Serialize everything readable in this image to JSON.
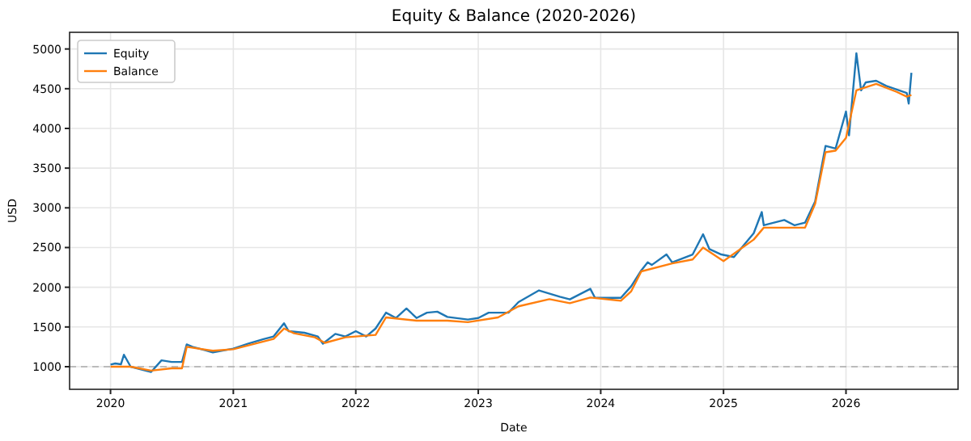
{
  "chart_data": {
    "type": "line",
    "title": "Equity & Balance (2020-2026)",
    "xlabel": "Date",
    "ylabel": "USD",
    "xlim": [
      "2019-09",
      "2026-12"
    ],
    "xticks": [
      "2020",
      "2021",
      "2022",
      "2023",
      "2024",
      "2025",
      "2026"
    ],
    "ylim": [
      715,
      5210
    ],
    "yticks": [
      1000,
      1500,
      2000,
      2500,
      3000,
      3500,
      4000,
      4500,
      5000
    ],
    "grid": true,
    "legend": "top left",
    "marker": "none",
    "line_style": "solid",
    "ref_lines": [
      {
        "axis": "y",
        "value": 1000,
        "color": "#aaaaaa",
        "line_style": "dashed"
      }
    ],
    "series": [
      {
        "name": "Equity",
        "color": "#1f77b4",
        "x": [
          "2020-01",
          "2020-01-15",
          "2020-02",
          "2020-02-10",
          "2020-03",
          "2020-05",
          "2020-06",
          "2020-07",
          "2020-08",
          "2020-08-15",
          "2020-09",
          "2020-11",
          "2021-01",
          "2021-02-15",
          "2021-04",
          "2021-05",
          "2021-06",
          "2021-06-15",
          "2021-08",
          "2021-09-10",
          "2021-09-25",
          "2021-11",
          "2021-12",
          "2022-01",
          "2022-02",
          "2022-03",
          "2022-04",
          "2022-05",
          "2022-06",
          "2022-07",
          "2022-08",
          "2022-09",
          "2022-10",
          "2022-12",
          "2023-01",
          "2023-02",
          "2023-04",
          "2023-05",
          "2023-07",
          "2023-09",
          "2023-10",
          "2023-12",
          "2023-12-15",
          "2024-03",
          "2024-04",
          "2024-05",
          "2024-05-20",
          "2024-06",
          "2024-07-15",
          "2024-08",
          "2024-10",
          "2024-11",
          "2024-11-20",
          "2024-12-25",
          "2025-02",
          "2025-04",
          "2025-04-25",
          "2025-05",
          "2025-07",
          "2025-08",
          "2025-09",
          "2025-10",
          "2025-11",
          "2025-12",
          "2026-01",
          "2026-01-10",
          "2026-02",
          "2026-02-15",
          "2026-03",
          "2026-04",
          "2026-05",
          "2026-07",
          "2026-07-07",
          "2026-07-15"
        ],
        "values": [
          1027,
          1040,
          1030,
          1150,
          1000,
          933,
          1080,
          1060,
          1060,
          1280,
          1250,
          1180,
          1227,
          1290,
          1347,
          1380,
          1547,
          1447,
          1427,
          1380,
          1290,
          1413,
          1380,
          1447,
          1380,
          1480,
          1680,
          1613,
          1733,
          1613,
          1680,
          1693,
          1627,
          1593,
          1613,
          1680,
          1680,
          1813,
          1960,
          1880,
          1847,
          1980,
          1867,
          1867,
          2013,
          2213,
          2313,
          2280,
          2413,
          2313,
          2413,
          2667,
          2480,
          2413,
          2380,
          2680,
          2947,
          2780,
          2847,
          2780,
          2813,
          3080,
          3780,
          3747,
          4213,
          3913,
          4947,
          4480,
          4580,
          4600,
          4535,
          4447,
          4313,
          4700
        ]
      },
      {
        "name": "Balance",
        "color": "#ff7f0e",
        "x": [
          "2020-01",
          "2020-03",
          "2020-05",
          "2020-07",
          "2020-08",
          "2020-08-15",
          "2020-11",
          "2021-01",
          "2021-05",
          "2021-06",
          "2021-07",
          "2021-09",
          "2021-10",
          "2021-12",
          "2022-03",
          "2022-04",
          "2022-07",
          "2022-10",
          "2022-12",
          "2023-03",
          "2023-05",
          "2023-08",
          "2023-10",
          "2023-12",
          "2024-03",
          "2024-04",
          "2024-05",
          "2024-08",
          "2024-10",
          "2024-11",
          "2025-01",
          "2025-04",
          "2025-05",
          "2025-09",
          "2025-10",
          "2025-11",
          "2025-12",
          "2026-01",
          "2026-02",
          "2026-04",
          "2026-06",
          "2026-07",
          "2026-07-15"
        ],
        "values": [
          1000,
          1000,
          950,
          980,
          980,
          1250,
          1200,
          1220,
          1350,
          1480,
          1420,
          1370,
          1300,
          1370,
          1400,
          1620,
          1580,
          1580,
          1560,
          1620,
          1760,
          1850,
          1800,
          1870,
          1830,
          1950,
          2200,
          2300,
          2350,
          2500,
          2330,
          2600,
          2750,
          2750,
          3050,
          3700,
          3720,
          3880,
          4480,
          4560,
          4460,
          4400,
          4420
        ]
      }
    ]
  }
}
